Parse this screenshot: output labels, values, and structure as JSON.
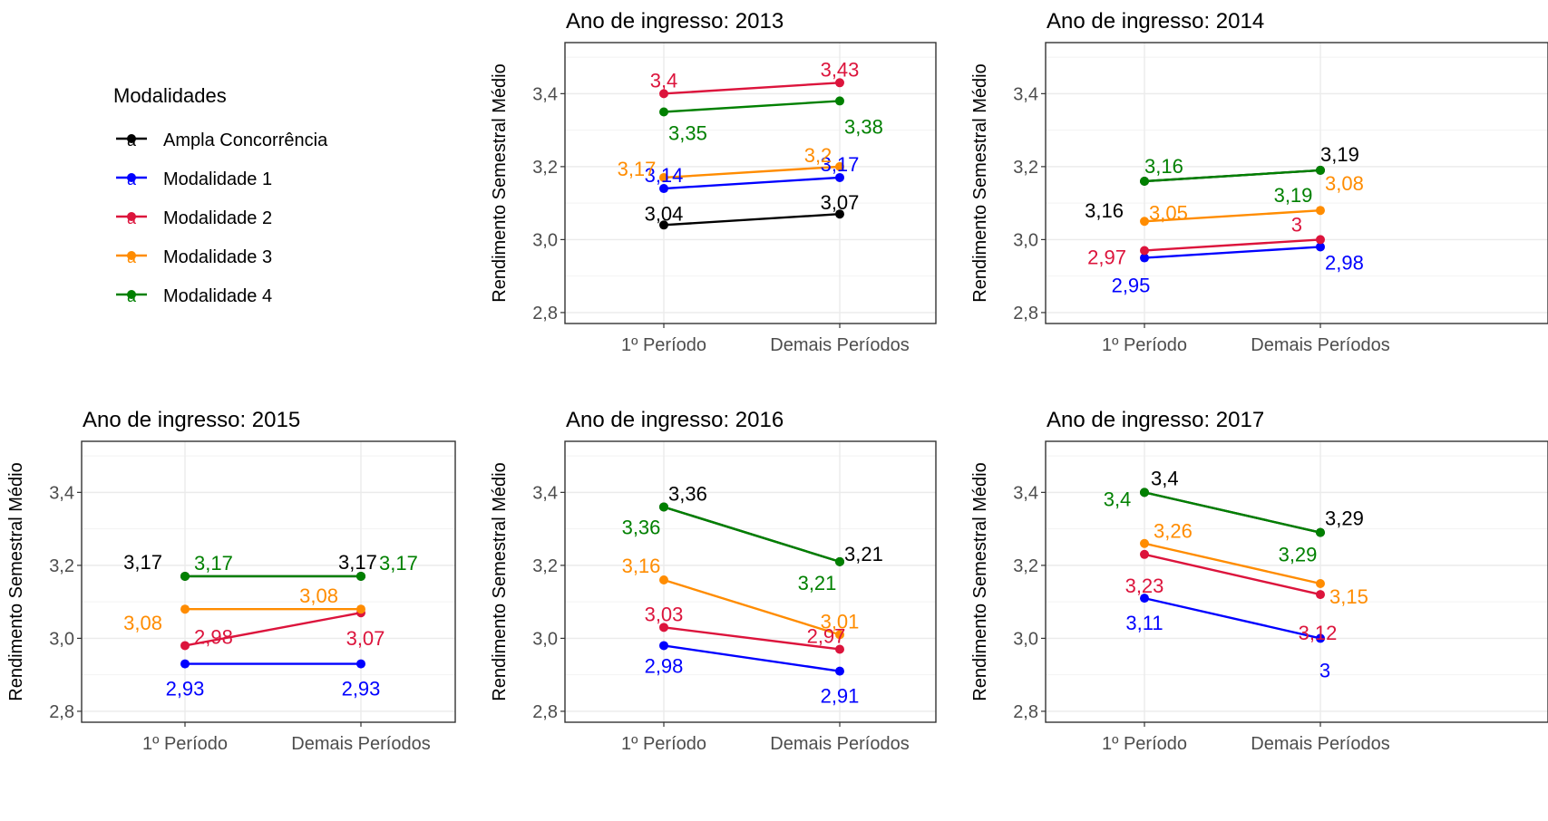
{
  "legend": {
    "title": "Modalidades",
    "glyph": "a",
    "items": [
      {
        "label": "Ampla Concorrência",
        "color": "#000000"
      },
      {
        "label": "Modalidade 1",
        "color": "#0000FF"
      },
      {
        "label": "Modalidade 2",
        "color": "#DC143C"
      },
      {
        "label": "Modalidade 3",
        "color": "#FF8C00"
      },
      {
        "label": "Modalidade 4",
        "color": "#008000"
      }
    ]
  },
  "chart_data": [
    {
      "type": "line",
      "title": "Ano de ingresso: 2013",
      "ylabel": "Rendimento Semestral Médio",
      "categories": [
        "1º Período",
        "Demais Períodos"
      ],
      "ylim": [
        2.77,
        3.54
      ],
      "yticks": [
        2.8,
        3.0,
        3.2,
        3.4
      ],
      "ytick_labels": [
        "2,8",
        "3,0",
        "3,2",
        "3,4"
      ],
      "grid": true,
      "series": [
        {
          "name": "Ampla Concorrência",
          "color": "#000000",
          "values": [
            3.04,
            3.07
          ],
          "labels": [
            "3,04",
            "3,07"
          ]
        },
        {
          "name": "Modalidade 1",
          "color": "#0000FF",
          "values": [
            3.14,
            3.17
          ],
          "labels": [
            "3,14",
            "3,17"
          ]
        },
        {
          "name": "Modalidade 2",
          "color": "#DC143C",
          "values": [
            3.4,
            3.43
          ],
          "labels": [
            "3,4",
            "3,43"
          ]
        },
        {
          "name": "Modalidade 3",
          "color": "#FF8C00",
          "values": [
            3.17,
            3.2
          ],
          "labels": [
            "3,17",
            "3,2"
          ]
        },
        {
          "name": "Modalidade 4",
          "color": "#008000",
          "values": [
            3.35,
            3.38
          ],
          "labels": [
            "3,35",
            "3,38"
          ]
        }
      ]
    },
    {
      "type": "line",
      "title": "Ano de ingresso: 2014",
      "ylabel": "Rendimento Semestral Médio",
      "categories": [
        "1º Período",
        "Demais Períodos"
      ],
      "ylim": [
        2.77,
        3.54
      ],
      "yticks": [
        2.8,
        3.0,
        3.2,
        3.4
      ],
      "ytick_labels": [
        "2,8",
        "3,0",
        "3,2",
        "3,4"
      ],
      "grid": true,
      "series": [
        {
          "name": "Ampla Concorrência",
          "color": "#000000",
          "values": [
            3.16,
            3.19
          ],
          "labels": [
            "3,16",
            "3,19"
          ]
        },
        {
          "name": "Modalidade 1",
          "color": "#0000FF",
          "values": [
            2.95,
            2.98
          ],
          "labels": [
            "2,95",
            "2,98"
          ]
        },
        {
          "name": "Modalidade 2",
          "color": "#DC143C",
          "values": [
            2.97,
            3.0
          ],
          "labels": [
            "2,97",
            "3"
          ]
        },
        {
          "name": "Modalidade 3",
          "color": "#FF8C00",
          "values": [
            3.05,
            3.08
          ],
          "labels": [
            "3,05",
            "3,08"
          ]
        },
        {
          "name": "Modalidade 4",
          "color": "#008000",
          "values": [
            3.16,
            3.19
          ],
          "labels": [
            "3,16",
            "3,19"
          ]
        }
      ]
    },
    {
      "type": "line",
      "title": "Ano de ingresso: 2015",
      "ylabel": "Rendimento Semestral Médio",
      "categories": [
        "1º Período",
        "Demais Períodos"
      ],
      "ylim": [
        2.77,
        3.54
      ],
      "yticks": [
        2.8,
        3.0,
        3.2,
        3.4
      ],
      "ytick_labels": [
        "2,8",
        "3,0",
        "3,2",
        "3,4"
      ],
      "grid": true,
      "series": [
        {
          "name": "Ampla Concorrência",
          "color": "#000000",
          "values": [
            3.17,
            3.17
          ],
          "labels": [
            "3,17",
            "3,17"
          ]
        },
        {
          "name": "Modalidade 1",
          "color": "#0000FF",
          "values": [
            2.93,
            2.93
          ],
          "labels": [
            "2,93",
            "2,93"
          ]
        },
        {
          "name": "Modalidade 2",
          "color": "#DC143C",
          "values": [
            2.98,
            3.07
          ],
          "labels": [
            "2,98",
            "3,07"
          ]
        },
        {
          "name": "Modalidade 3",
          "color": "#FF8C00",
          "values": [
            3.08,
            3.08
          ],
          "labels": [
            "3,08",
            "3,08"
          ]
        },
        {
          "name": "Modalidade 4",
          "color": "#008000",
          "values": [
            3.17,
            3.17
          ],
          "labels": [
            "3,17",
            "3,17"
          ]
        }
      ]
    },
    {
      "type": "line",
      "title": "Ano de ingresso: 2016",
      "ylabel": "Rendimento Semestral Médio",
      "categories": [
        "1º Período",
        "Demais Períodos"
      ],
      "ylim": [
        2.77,
        3.54
      ],
      "yticks": [
        2.8,
        3.0,
        3.2,
        3.4
      ],
      "ytick_labels": [
        "2,8",
        "3,0",
        "3,2",
        "3,4"
      ],
      "grid": true,
      "series": [
        {
          "name": "Ampla Concorrência",
          "color": "#000000",
          "values": [
            3.36,
            3.21
          ],
          "labels": [
            "3,36",
            "3,21"
          ]
        },
        {
          "name": "Modalidade 1",
          "color": "#0000FF",
          "values": [
            2.98,
            2.91
          ],
          "labels": [
            "2,98",
            "2,91"
          ]
        },
        {
          "name": "Modalidade 2",
          "color": "#DC143C",
          "values": [
            3.03,
            2.97
          ],
          "labels": [
            "3,03",
            "2,97"
          ]
        },
        {
          "name": "Modalidade 3",
          "color": "#FF8C00",
          "values": [
            3.16,
            3.01
          ],
          "labels": [
            "3,16",
            "3,01"
          ]
        },
        {
          "name": "Modalidade 4",
          "color": "#008000",
          "values": [
            3.36,
            3.21
          ],
          "labels": [
            "3,36",
            "3,21"
          ]
        }
      ]
    },
    {
      "type": "line",
      "title": "Ano de ingresso: 2017",
      "ylabel": "Rendimento Semestral Médio",
      "categories": [
        "1º Período",
        "Demais Períodos"
      ],
      "ylim": [
        2.77,
        3.54
      ],
      "yticks": [
        2.8,
        3.0,
        3.2,
        3.4
      ],
      "ytick_labels": [
        "2,8",
        "3,0",
        "3,2",
        "3,4"
      ],
      "grid": true,
      "series": [
        {
          "name": "Ampla Concorrência",
          "color": "#000000",
          "values": [
            3.4,
            3.29
          ],
          "labels": [
            "3,4",
            "3,29"
          ]
        },
        {
          "name": "Modalidade 1",
          "color": "#0000FF",
          "values": [
            3.11,
            3.0
          ],
          "labels": [
            "3,11",
            "3"
          ]
        },
        {
          "name": "Modalidade 2",
          "color": "#DC143C",
          "values": [
            3.23,
            3.12
          ],
          "labels": [
            "3,23",
            "3,12"
          ]
        },
        {
          "name": "Modalidade 3",
          "color": "#FF8C00",
          "values": [
            3.26,
            3.15
          ],
          "labels": [
            "3,26",
            "3,15"
          ]
        },
        {
          "name": "Modalidade 4",
          "color": "#008000",
          "values": [
            3.4,
            3.29
          ],
          "labels": [
            "3,4",
            "3,29"
          ]
        }
      ]
    }
  ]
}
